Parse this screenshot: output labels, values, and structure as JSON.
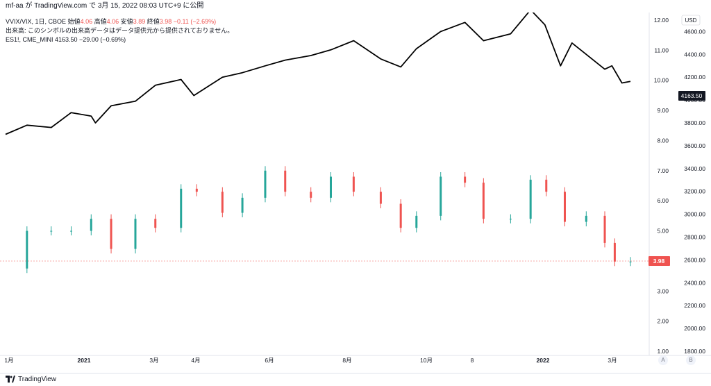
{
  "header": {
    "publish_text": "mf-aa が TradingView.com で 3月 15, 2022 08:03 UTC+9 に公開"
  },
  "legend": {
    "symbol": "VVIX/VIX, 1日, CBOE",
    "open_label": "始値",
    "open_value": "4.06",
    "high_label": "高値",
    "high_value": "4.06",
    "low_label": "安値",
    "low_value": "3.89",
    "close_label": "終値",
    "close_value": "3.98",
    "change": "−0.11 (−2.69%)",
    "volume_note": "出来高: このシンボルの出来高データはデータ提供元から提供されておりません。",
    "es_line": "ES1!, CME_MINI  4163.50  −29.00 (−0.69%)"
  },
  "axes": {
    "left_labels": [
      "12.00",
      "11.00",
      "10.00",
      "9.00",
      "8.00",
      "7.00",
      "6.00",
      "5.00",
      "4.00",
      "3.00",
      "2.00",
      "1.00"
    ],
    "right_labels": [
      "4600.00",
      "4400.00",
      "4200.00",
      "4000.00",
      "3800.00",
      "3600.00",
      "3400.00",
      "3200.00",
      "3000.00",
      "2800.00",
      "2600.00",
      "2400.00",
      "2200.00",
      "2000.00",
      "1800.00"
    ],
    "currency": "USD",
    "time_labels": [
      "1月",
      "2021",
      "3月",
      "4月",
      "6月",
      "8月",
      "10月",
      "8",
      "2022",
      "3月"
    ],
    "scale_btn_a": "A",
    "scale_btn_b": "B"
  },
  "price_tags": {
    "es_last": "4163.50",
    "ratio_last": "3.98"
  },
  "footer": {
    "brand": "TradingView"
  },
  "colors": {
    "up": "#26a69a",
    "down": "#ef5350",
    "line": "#000000",
    "tag_dark": "#131722",
    "tag_red": "#ef5350"
  },
  "chart_data": {
    "type": "line",
    "series": [
      {
        "name": "ES1!, CME_MINI",
        "kind": "line",
        "x": [
          "2020-12-31",
          "2021-01-15",
          "2021-02-01",
          "2021-02-15",
          "2021-03-01",
          "2021-03-04",
          "2021-03-15",
          "2021-04-01",
          "2021-04-15",
          "2021-05-03",
          "2021-05-12",
          "2021-06-01",
          "2021-06-15",
          "2021-07-01",
          "2021-07-15",
          "2021-08-02",
          "2021-08-16",
          "2021-09-01",
          "2021-09-20",
          "2021-10-04",
          "2021-10-15",
          "2021-11-01",
          "2021-11-18",
          "2021-12-01",
          "2021-12-20",
          "2022-01-03",
          "2022-01-13",
          "2022-01-24",
          "2022-02-01",
          "2022-02-11",
          "2022-02-24",
          "2022-03-01",
          "2022-03-08",
          "2022-03-14"
        ],
        "values": [
          3700,
          3780,
          3760,
          3890,
          3860,
          3800,
          3950,
          3990,
          4130,
          4180,
          4040,
          4200,
          4240,
          4300,
          4350,
          4390,
          4440,
          4520,
          4360,
          4290,
          4450,
          4600,
          4680,
          4520,
          4580,
          4790,
          4660,
          4300,
          4500,
          4400,
          4270,
          4300,
          4150,
          4163.5
        ]
      },
      {
        "name": "VVIX/VIX, 1日, CBOE",
        "kind": "candlestick",
        "x": [
          "2020-12-31",
          "2021-01-15",
          "2021-02-01",
          "2021-02-15",
          "2021-03-01",
          "2021-03-15",
          "2021-04-01",
          "2021-04-15",
          "2021-05-03",
          "2021-05-14",
          "2021-06-01",
          "2021-06-15",
          "2021-07-01",
          "2021-07-15",
          "2021-08-02",
          "2021-08-16",
          "2021-09-01",
          "2021-09-20",
          "2021-10-04",
          "2021-10-15",
          "2021-11-01",
          "2021-11-18",
          "2021-12-01",
          "2021-12-20",
          "2022-01-03",
          "2022-01-14",
          "2022-01-27",
          "2022-02-11",
          "2022-02-24",
          "2022-03-03",
          "2022-03-14"
        ],
        "values": [
          3.75,
          5.0,
          5.0,
          5.0,
          5.4,
          4.4,
          5.4,
          5.1,
          6.4,
          6.3,
          5.6,
          6.1,
          7.0,
          6.3,
          6.1,
          6.8,
          6.3,
          5.9,
          5.1,
          5.5,
          6.8,
          6.6,
          5.4,
          5.4,
          6.7,
          6.3,
          5.3,
          5.5,
          4.6,
          3.98,
          3.98
        ]
      }
    ],
    "axes": {
      "left_ylim": [
        1.0,
        12.0
      ],
      "right_ylim": [
        1800,
        4700
      ],
      "currency": "USD"
    },
    "last_values": {
      "ratio": 3.98,
      "es": 4163.5
    },
    "legend_position": "top-left",
    "grid": false
  }
}
